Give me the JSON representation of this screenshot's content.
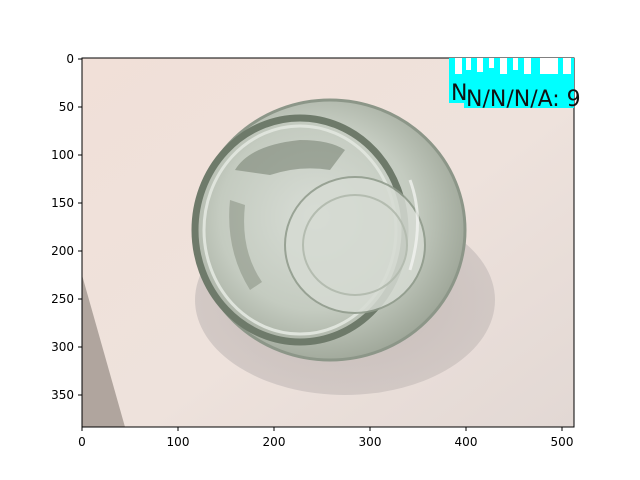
{
  "axes": {
    "x_ticks": [
      "0",
      "100",
      "200",
      "300",
      "400",
      "500"
    ],
    "y_ticks": [
      "0",
      "50",
      "100",
      "150",
      "200",
      "250",
      "300",
      "350"
    ]
  },
  "overlay": {
    "label_back": "N",
    "label_front": "N/N/N/A: 9"
  },
  "colors": {
    "background": "#f1e2da",
    "overlay": "#00ffff",
    "glass": "#7f8a7c"
  }
}
